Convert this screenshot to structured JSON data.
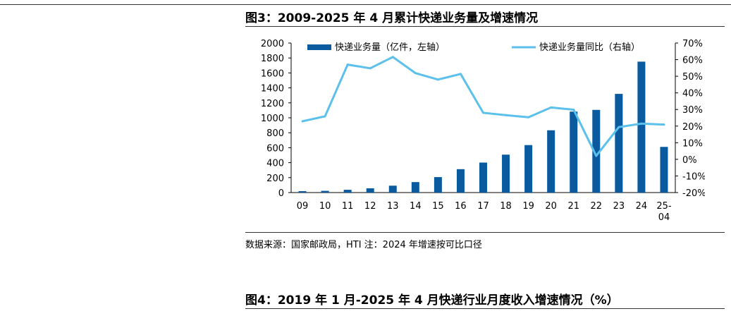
{
  "figure3": {
    "title": "图3：2009-2025 年 4 月累计快递业务量及增速情况",
    "source": "数据来源：国家邮政局，HTI    注：2024 年增速按可比口径"
  },
  "figure4": {
    "title": "图4：2019 年 1 月-2025 年 4 月快递行业月度收入增速情况（%）"
  },
  "chart_data": {
    "type": "bar",
    "categories": [
      "09",
      "10",
      "11",
      "12",
      "13",
      "14",
      "15",
      "16",
      "17",
      "18",
      "19",
      "20",
      "21",
      "22",
      "23",
      "24",
      "25-04"
    ],
    "series": [
      {
        "name": "快递业务量（亿件，左轴）",
        "type": "bar",
        "axis": "left",
        "color": "#0a5aa0",
        "values": [
          19,
          23,
          37,
          57,
          92,
          140,
          207,
          313,
          401,
          507,
          635,
          833,
          1083,
          1106,
          1320,
          1751,
          611
        ]
      },
      {
        "name": "快递业务量同比（右轴）",
        "type": "line",
        "axis": "right",
        "color": "#5bc0eb",
        "values": [
          22.9,
          25.9,
          57.0,
          54.8,
          61.6,
          51.9,
          48.0,
          51.4,
          28.0,
          26.6,
          25.3,
          31.2,
          29.9,
          2.1,
          19.4,
          21.5,
          20.9
        ]
      }
    ],
    "y_left": {
      "min": 0,
      "max": 2000,
      "ticks": [
        "0",
        "200",
        "400",
        "600",
        "800",
        "1000",
        "1200",
        "1400",
        "1600",
        "1800",
        "2000"
      ]
    },
    "y_right": {
      "min": -20,
      "max": 70,
      "ticks": [
        "-20%",
        "-10%",
        "0%",
        "10%",
        "20%",
        "30%",
        "40%",
        "50%",
        "60%",
        "70%"
      ]
    },
    "x_tick_labels": [
      [
        "09"
      ],
      [
        "10"
      ],
      [
        "11"
      ],
      [
        "12"
      ],
      [
        "13"
      ],
      [
        "14"
      ],
      [
        "15"
      ],
      [
        "16"
      ],
      [
        "17"
      ],
      [
        "18"
      ],
      [
        "19"
      ],
      [
        "20"
      ],
      [
        "21"
      ],
      [
        "22"
      ],
      [
        "23"
      ],
      [
        "24"
      ],
      [
        "25-",
        "04"
      ]
    ],
    "legend_position": "top",
    "grid": false
  }
}
